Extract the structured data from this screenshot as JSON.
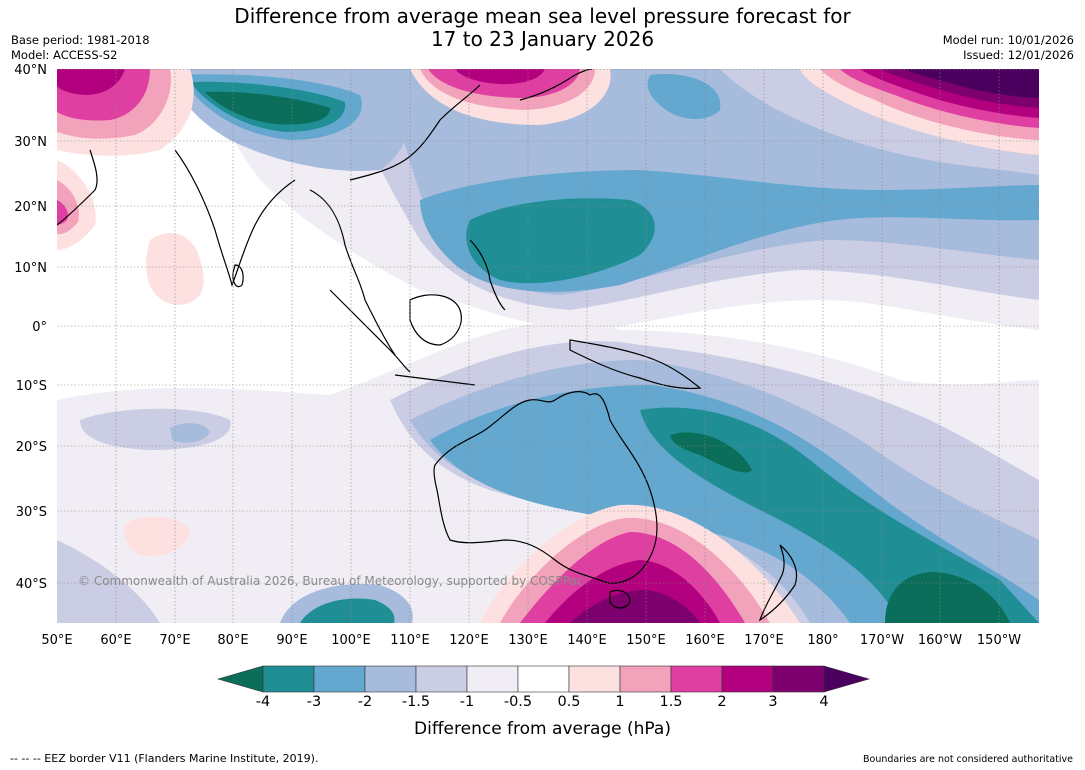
{
  "title_line1": "Difference from average mean sea level pressure forecast for",
  "title_line2": "17 to 23 January 2026",
  "base_period": "Base period: 1981-2018",
  "model": "Model: ACCESS-S2",
  "model_run": "Model run: 10/01/2026",
  "issued": "Issued: 12/01/2026",
  "copyright": "© Commonwealth of Australia 2026, Bureau of Meteorology, supported by COSPPac",
  "lat_labels": [
    "40°N",
    "30°N",
    "20°N",
    "10°N",
    "0°",
    "10°S",
    "20°S",
    "30°S",
    "40°S"
  ],
  "lon_labels": [
    "50°E",
    "60°E",
    "70°E",
    "80°E",
    "90°E",
    "100°E",
    "110°E",
    "120°E",
    "130°E",
    "140°E",
    "150°E",
    "160°E",
    "170°E",
    "180°",
    "170°W",
    "160°W",
    "150°W"
  ],
  "colorbar": {
    "title": "Difference from average (hPa)",
    "tick_labels": [
      "-4",
      "-3",
      "-2",
      "-1.5",
      "-1",
      "-0.5",
      "0.5",
      "1",
      "1.5",
      "2",
      "3",
      "4"
    ],
    "colors": {
      "below_-4": "#0b6e5b",
      "-4_-3": "#1f8f95",
      "-3_-2": "#64a8cf",
      "-2_-1.5": "#a7bcdc",
      "-1.5_-1": "#cacde3",
      "-1_-0.5": "#f1edf4",
      "-0.5_0.5": "#ffffff",
      "0.5_1": "#fde1e1",
      "1_1.5": "#f3a2bc",
      "1.5_2": "#de3fa0",
      "2_3": "#b3007e",
      "3_4": "#7e006f",
      "above_4": "#4b0060"
    }
  },
  "footer_left": "--  --  -- EEZ border V11 (Flanders Marine Institute, 2019).",
  "footer_right": "Boundaries are not considered authoritative"
}
